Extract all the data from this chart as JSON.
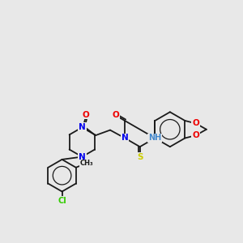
{
  "background_color": "#e8e8e8",
  "bond_color": "#1a1a1a",
  "atom_colors": {
    "N": "#0000ee",
    "O": "#ee0000",
    "S": "#cccc00",
    "Cl": "#33cc00",
    "NH": "#4488cc",
    "C": "#1a1a1a"
  },
  "figsize": [
    3.0,
    3.0
  ],
  "dpi": 100
}
